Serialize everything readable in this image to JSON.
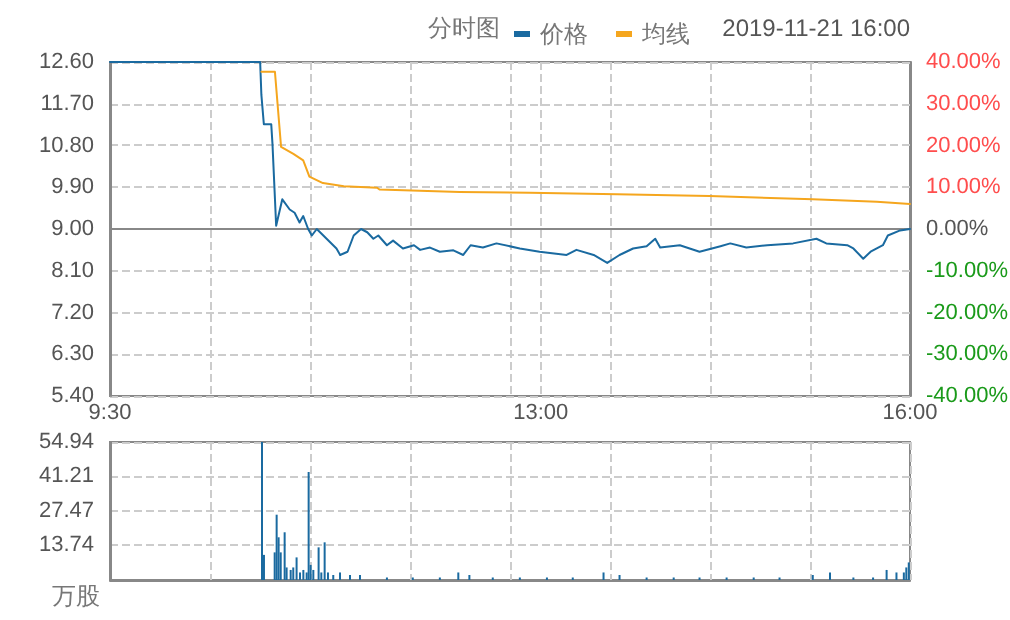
{
  "chart_data": [
    {
      "type": "line",
      "subtitle": "分时图",
      "annotations": [
        "2019-11-21 16:00"
      ],
      "xlim": [
        9.5,
        16
      ],
      "xticks": [
        {
          "value": 9.5,
          "label": "9:30"
        },
        {
          "value": 10.3125,
          "label": null
        },
        {
          "value": 11.125,
          "label": null
        },
        {
          "value": 11.9375,
          "label": null
        },
        {
          "value": 12.75,
          "label": null
        },
        {
          "value": 13,
          "label": "13:00"
        },
        {
          "value": 13.5625,
          "label": null
        },
        {
          "value": 14.375,
          "label": null
        },
        {
          "value": 15.1875,
          "label": null
        },
        {
          "value": 16,
          "label": "16:00"
        }
      ],
      "ylim": [
        5.4,
        12.6
      ],
      "yticks": [
        {
          "value": 5.4,
          "label": "5.40"
        },
        {
          "value": 6.3,
          "label": "6.30"
        },
        {
          "value": 7.2,
          "label": "7.20"
        },
        {
          "value": 8.1,
          "label": "8.10"
        },
        {
          "value": 9,
          "label": "9.00"
        },
        {
          "value": 9.9,
          "label": "9.90"
        },
        {
          "value": 10.8,
          "label": "10.80"
        },
        {
          "value": 11.7,
          "label": "11.70"
        },
        {
          "value": 12.6,
          "label": "12.60"
        }
      ],
      "y2lim": [
        -40,
        40
      ],
      "y2ticks": [
        {
          "value": -40,
          "label": "-40.00%"
        },
        {
          "value": -30,
          "label": "-30.00%"
        },
        {
          "value": -20,
          "label": "-20.00%"
        },
        {
          "value": -10,
          "label": "-10.00%"
        },
        {
          "value": 0,
          "label": "0.00%"
        },
        {
          "value": 10,
          "label": "10.00%"
        },
        {
          "value": 20,
          "label": "20.00%"
        },
        {
          "value": 30,
          "label": "30.00%"
        },
        {
          "value": 40,
          "label": "40.00%"
        }
      ],
      "grid": true,
      "legend": "top right",
      "marker": "none",
      "series": [
        {
          "name": "价格",
          "color": "#1a6aa0",
          "x": [
            9.5,
            10.72,
            10.73,
            10.75,
            10.81,
            10.82,
            10.85,
            10.9,
            10.96,
            11,
            11.04,
            11.07,
            11.11,
            11.14,
            11.18,
            11.26,
            11.34,
            11.37,
            11.43,
            11.48,
            11.54,
            11.59,
            11.64,
            11.68,
            11.75,
            11.8,
            11.88,
            11.97,
            12.02,
            12.1,
            12.18,
            12.29,
            12.37,
            12.43,
            12.53,
            12.64,
            12.83,
            12.99,
            13.21,
            13.29,
            13.43,
            13.54,
            13.64,
            13.75,
            13.86,
            13.93,
            13.97,
            14.13,
            14.29,
            14.46,
            14.54,
            14.67,
            14.84,
            15.05,
            15.24,
            15.32,
            15.49,
            15.54,
            15.62,
            15.68,
            15.78,
            15.82,
            15.92,
            16
          ],
          "values": [
            12.6,
            12.6,
            11.89,
            11.26,
            11.26,
            10.84,
            9.07,
            9.64,
            9.42,
            9.35,
            9.14,
            9.28,
            9,
            8.86,
            9,
            8.79,
            8.58,
            8.44,
            8.51,
            8.86,
            9,
            8.93,
            8.79,
            8.86,
            8.65,
            8.75,
            8.58,
            8.65,
            8.55,
            8.6,
            8.51,
            8.54,
            8.44,
            8.65,
            8.6,
            8.69,
            8.58,
            8.51,
            8.44,
            8.55,
            8.44,
            8.27,
            8.44,
            8.58,
            8.63,
            8.79,
            8.6,
            8.65,
            8.51,
            8.63,
            8.69,
            8.6,
            8.65,
            8.69,
            8.79,
            8.69,
            8.65,
            8.58,
            8.36,
            8.51,
            8.65,
            8.86,
            8.97,
            9
          ]
        },
        {
          "name": "均线",
          "color": "#f5a61e",
          "x": [
            10.73,
            10.84,
            10.89,
            10.99,
            11.07,
            11.12,
            11.23,
            11.4,
            11.67,
            11.69,
            12.34,
            12.91,
            13.62,
            14.37,
            15.21,
            15.73,
            16
          ],
          "values": [
            12.39,
            12.39,
            10.77,
            10.62,
            10.48,
            10.13,
            9.99,
            9.92,
            9.89,
            9.85,
            9.8,
            9.78,
            9.75,
            9.71,
            9.64,
            9.59,
            9.54
          ]
        }
      ]
    },
    {
      "type": "bar",
      "ylabel": "万股",
      "tick_labels": "y",
      "grid": true,
      "color": "#1a6aa0",
      "xlim": [
        9.5,
        16
      ],
      "xticks": [
        {
          "value": 9.5,
          "label": null
        },
        {
          "value": 10.3125,
          "label": null
        },
        {
          "value": 11.125,
          "label": null
        },
        {
          "value": 11.9375,
          "label": null
        },
        {
          "value": 12.75,
          "label": null
        },
        {
          "value": 13.5625,
          "label": null
        },
        {
          "value": 14.375,
          "label": null
        },
        {
          "value": 15.1875,
          "label": null
        },
        {
          "value": 16,
          "label": null
        }
      ],
      "ylim": [
        0,
        54.94
      ],
      "yticks": [
        13.74,
        27.47,
        41.21,
        54.94
      ],
      "x": [
        10.735,
        10.751,
        10.838,
        10.854,
        10.87,
        10.887,
        10.919,
        10.935,
        10.968,
        10.989,
        11.016,
        11.044,
        11.071,
        11.098,
        11.114,
        11.13,
        11.152,
        11.195,
        11.217,
        11.244,
        11.271,
        11.314,
        11.369,
        11.45,
        11.531,
        11.75,
        11.96,
        12.18,
        12.33,
        12.42,
        12.61,
        12.83,
        13.05,
        13.26,
        13.51,
        13.64,
        13.86,
        14.08,
        14.29,
        14.51,
        14.73,
        14.94,
        15.21,
        15.35,
        15.54,
        15.7,
        15.81,
        15.89,
        15.95,
        15.97,
        15.99
      ],
      "values": [
        54.94,
        10,
        11,
        26,
        17,
        11,
        19,
        5,
        4,
        5,
        9,
        3,
        4,
        3,
        43,
        6,
        4,
        13,
        3,
        15,
        3,
        2,
        3,
        2,
        2,
        1,
        1,
        1,
        3,
        2,
        1,
        1,
        1,
        1,
        3,
        2,
        1,
        1,
        1,
        1,
        1,
        1,
        2,
        3,
        1,
        1,
        4,
        3,
        3,
        5,
        7
      ]
    }
  ]
}
